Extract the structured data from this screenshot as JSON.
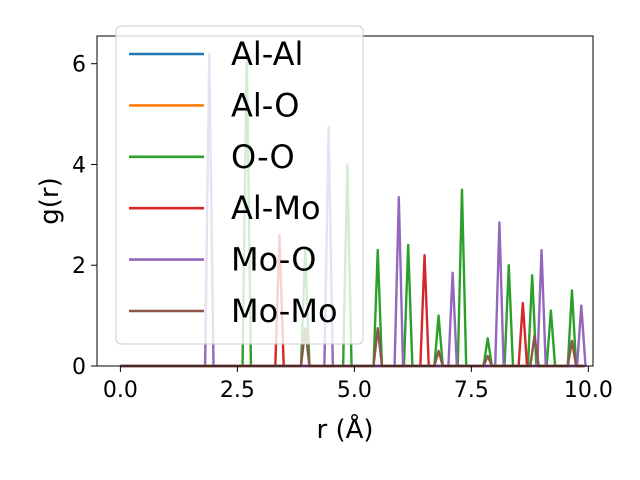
{
  "chart_data": {
    "type": "line",
    "title": "",
    "xlabel": "r (Å)",
    "ylabel": "g(r)",
    "xlim": [
      -0.5,
      10.1
    ],
    "ylim": [
      0,
      6.55
    ],
    "x_ticks": [
      0.0,
      2.5,
      5.0,
      7.5,
      10.0
    ],
    "x_tick_labels": [
      "0.0",
      "2.5",
      "5.0",
      "7.5",
      "10.0"
    ],
    "y_ticks": [
      0,
      2,
      4,
      6
    ],
    "y_tick_labels": [
      "0",
      "2",
      "4",
      "6"
    ],
    "grid": false,
    "legend_position": "upper-left",
    "series": [
      {
        "name": "Al-Al",
        "color": "#1f77b4",
        "peaks": []
      },
      {
        "name": "Al-O",
        "color": "#ff7f0e",
        "peaks": []
      },
      {
        "name": "O-O",
        "color": "#2ca02c",
        "peaks": [
          {
            "r": 2.7,
            "g": 6.2
          },
          {
            "r": 3.95,
            "g": 2.3
          },
          {
            "r": 4.85,
            "g": 4.0
          },
          {
            "r": 5.5,
            "g": 2.3
          },
          {
            "r": 6.15,
            "g": 2.4
          },
          {
            "r": 6.8,
            "g": 1.0
          },
          {
            "r": 7.3,
            "g": 3.5
          },
          {
            "r": 7.85,
            "g": 0.55
          },
          {
            "r": 8.3,
            "g": 2.0
          },
          {
            "r": 8.8,
            "g": 1.8
          },
          {
            "r": 9.2,
            "g": 1.1
          },
          {
            "r": 9.65,
            "g": 1.5
          }
        ]
      },
      {
        "name": "Al-Mo",
        "color": "#d62728",
        "peaks": [
          {
            "r": 3.4,
            "g": 2.6
          },
          {
            "r": 6.5,
            "g": 2.2
          },
          {
            "r": 8.6,
            "g": 1.25
          }
        ]
      },
      {
        "name": "Mo-O",
        "color": "#9467bd",
        "peaks": [
          {
            "r": 1.9,
            "g": 6.2
          },
          {
            "r": 4.45,
            "g": 4.75
          },
          {
            "r": 5.95,
            "g": 3.35
          },
          {
            "r": 7.1,
            "g": 1.85
          },
          {
            "r": 8.1,
            "g": 2.85
          },
          {
            "r": 9.0,
            "g": 2.3
          },
          {
            "r": 9.85,
            "g": 1.2
          }
        ]
      },
      {
        "name": "Mo-Mo",
        "color": "#8c564b",
        "peaks": [
          {
            "r": 3.95,
            "g": 0.75
          },
          {
            "r": 5.5,
            "g": 0.75
          },
          {
            "r": 6.8,
            "g": 0.3
          },
          {
            "r": 7.85,
            "g": 0.2
          },
          {
            "r": 8.85,
            "g": 0.6
          },
          {
            "r": 9.65,
            "g": 0.5
          }
        ]
      }
    ]
  }
}
